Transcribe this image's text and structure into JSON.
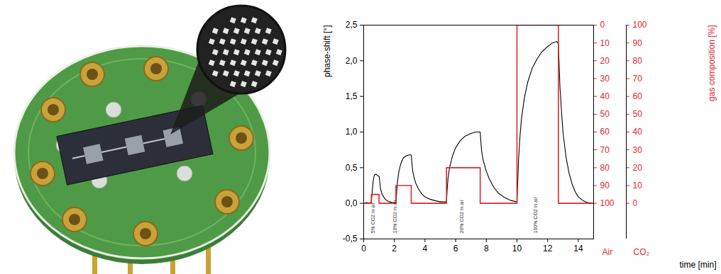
{
  "chart_data": {
    "type": "line",
    "xlabel": "time [min]",
    "ylabel": "phase-shift [°]",
    "xlim": [
      0,
      15
    ],
    "xticks": [
      0,
      2,
      4,
      6,
      8,
      10,
      12,
      14
    ],
    "ylim": [
      -0.5,
      2.5
    ],
    "yticks": [
      {
        "value": -0.5,
        "label": "-0,5"
      },
      {
        "value": 0,
        "label": "0,0"
      },
      {
        "value": 0.5,
        "label": "0,5"
      },
      {
        "value": 1,
        "label": "1,0"
      },
      {
        "value": 1.5,
        "label": "1,5"
      },
      {
        "value": 2,
        "label": "2,0"
      },
      {
        "value": 2.5,
        "label": "2,5"
      }
    ],
    "y2label": "gas composition [%]",
    "y2name": "CO₂",
    "y2lim": [
      -20,
      100
    ],
    "y2ticks": [
      0,
      10,
      20,
      30,
      40,
      50,
      60,
      70,
      80,
      90,
      100
    ],
    "y3name": "Air",
    "y3lim": [
      120,
      0
    ],
    "y3ticks": [
      0,
      10,
      20,
      30,
      40,
      50,
      60,
      70,
      80,
      90,
      100
    ],
    "series": [
      {
        "color": "#000000",
        "x": [
          0,
          0.2,
          0.4,
          0.5,
          0.55,
          0.6,
          0.65,
          0.7,
          0.8,
          0.9,
          1.0,
          1.05,
          1.1,
          1.2,
          1.3,
          1.4,
          1.5,
          1.7,
          1.9,
          2.1,
          2.15,
          2.2,
          2.3,
          2.4,
          2.5,
          2.6,
          2.8,
          3.0,
          3.1,
          3.15,
          3.2,
          3.3,
          3.4,
          3.6,
          3.8,
          4.0,
          4.3,
          4.6,
          5.0,
          5.4,
          5.45,
          5.5,
          5.6,
          5.8,
          6.0,
          6.3,
          6.6,
          7.0,
          7.3,
          7.6,
          7.65,
          7.7,
          7.8,
          8.0,
          8.2,
          8.5,
          8.8,
          9.2,
          9.6,
          10.0,
          10.05,
          10.1,
          10.2,
          10.3,
          10.5,
          10.7,
          11.0,
          11.3,
          11.6,
          12.0,
          12.3,
          12.6,
          12.7,
          12.75,
          12.8,
          12.9,
          13.0,
          13.2,
          13.4,
          13.6,
          13.8,
          14.0,
          14.3,
          14.6,
          15.0
        ],
        "values": [
          0,
          0.01,
          0,
          0.02,
          0.15,
          0.28,
          0.35,
          0.4,
          0.41,
          0.39,
          0.38,
          0.3,
          0.2,
          0.13,
          0.09,
          0.06,
          0.04,
          0.02,
          0.01,
          0.01,
          0.15,
          0.3,
          0.45,
          0.54,
          0.6,
          0.64,
          0.67,
          0.68,
          0.68,
          0.55,
          0.45,
          0.35,
          0.28,
          0.19,
          0.13,
          0.09,
          0.06,
          0.04,
          0.02,
          0.02,
          0.2,
          0.35,
          0.5,
          0.67,
          0.78,
          0.88,
          0.94,
          0.98,
          1.0,
          1.0,
          0.85,
          0.72,
          0.6,
          0.45,
          0.34,
          0.22,
          0.14,
          0.08,
          0.04,
          0.02,
          0.3,
          0.6,
          0.95,
          1.2,
          1.5,
          1.7,
          1.9,
          2.02,
          2.12,
          2.2,
          2.25,
          2.27,
          2.24,
          1.95,
          1.65,
          1.3,
          1.0,
          0.65,
          0.42,
          0.27,
          0.16,
          0.09,
          0.04,
          0.01,
          0
        ]
      },
      {
        "name": "CO₂",
        "axis": "y2",
        "color": "#e3262b",
        "line_style": "step",
        "x": [
          0,
          0.5,
          1.0,
          2.1,
          3.1,
          5.4,
          7.6,
          10,
          12.7,
          15
        ],
        "values": [
          0,
          5,
          0,
          10,
          0,
          20,
          0,
          100,
          0,
          0
        ]
      }
    ],
    "annotations": [
      {
        "text": "5% CO2 in air",
        "x": 0.7
      },
      {
        "text": "10% CO2 in air",
        "x": 2.15
      },
      {
        "text": "20% CO2 in air",
        "x": 6.5
      },
      {
        "text": "100% CO2 in air",
        "x": 11.3
      }
    ]
  }
}
